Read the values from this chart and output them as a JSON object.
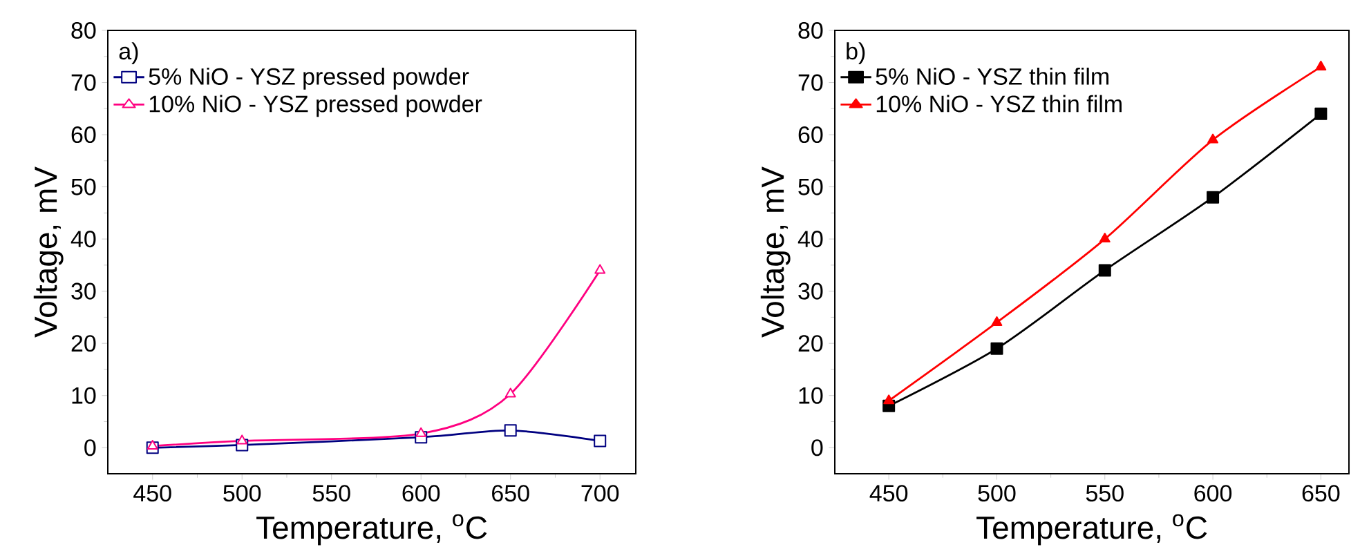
{
  "chart_data": [
    {
      "type": "line",
      "annotations": [
        "a)"
      ],
      "xlabel": "Temperature, $^{o}$C",
      "ylabel": "Voltage, mV",
      "x": [
        450,
        500,
        600,
        650,
        700
      ],
      "series": [
        {
          "name": "5% NiO - YSZ  pressed powder",
          "color": "#000080",
          "marker": "square",
          "values": [
            0,
            0.5,
            2,
            3.3,
            1.3
          ]
        },
        {
          "name": "10% NiO - YSZ pressed powder",
          "color": "#ff0080",
          "marker": "triangle",
          "values": [
            0.3,
            1.3,
            2.7,
            10.3,
            34
          ]
        }
      ],
      "xlim": [
        425,
        720
      ],
      "ylim": [
        -5,
        80
      ],
      "xticks": [
        450,
        500,
        550,
        600,
        650,
        700
      ],
      "yticks": [
        0,
        10,
        20,
        30,
        40,
        50,
        60,
        70,
        80
      ],
      "legend": "top left",
      "grid": false
    },
    {
      "type": "line",
      "annotations": [
        "b)"
      ],
      "xlabel": "Temperature, $^{o}$C",
      "ylabel": "Voltage, mV",
      "x": [
        450,
        500,
        550,
        600,
        650
      ],
      "series": [
        {
          "name": "5% NiO - YSZ thin film",
          "color": "#000000",
          "marker": "square",
          "values": [
            8,
            19,
            34,
            48,
            64
          ]
        },
        {
          "name": "10% NiO - YSZ thin film",
          "color": "#ff0000",
          "marker": "triangle",
          "values": [
            9,
            24,
            40,
            59,
            73
          ]
        }
      ],
      "xlim": [
        425,
        663
      ],
      "ylim": [
        -5,
        80
      ],
      "xticks": [
        450,
        500,
        550,
        600,
        650
      ],
      "yticks": [
        0,
        10,
        20,
        30,
        40,
        50,
        60,
        70,
        80
      ],
      "legend": "top left",
      "grid": false
    }
  ]
}
